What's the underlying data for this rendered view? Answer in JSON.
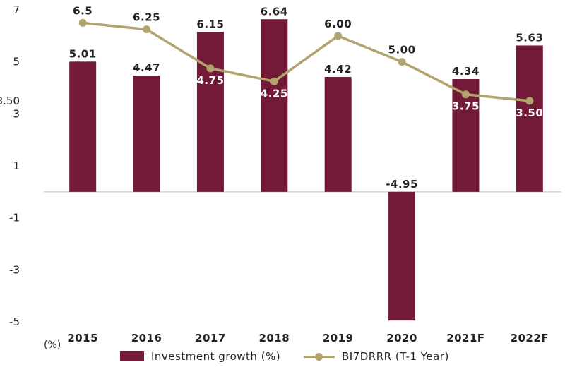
{
  "chart_data": {
    "type": "bar",
    "categories": [
      "2015",
      "2016",
      "2017",
      "2018",
      "2019",
      "2020",
      "2021F",
      "2022F"
    ],
    "yticks": [
      "7",
      "5",
      "3.50",
      "3",
      "1",
      "-1",
      "-3",
      "-5"
    ],
    "ylim": [
      -5,
      7
    ],
    "unit_label": "(%)",
    "series": [
      {
        "name": "Investment growth (%)",
        "kind": "bar",
        "color": "#731a38",
        "values": [
          5.01,
          4.47,
          6.15,
          6.64,
          4.42,
          -4.95,
          4.34,
          5.63
        ],
        "labels": [
          "5.01",
          "4.47",
          "6.15",
          "6.64",
          "4.42",
          "-4.95",
          "4.34",
          "5.63"
        ]
      },
      {
        "name": "BI7DRRR (T-1 Year)",
        "kind": "line",
        "color": "#b2a46e",
        "values": [
          6.5,
          6.25,
          4.75,
          4.25,
          6.0,
          5.0,
          3.75,
          3.5
        ],
        "labels": [
          "6.5",
          "6.25",
          "4.75",
          "4.25",
          "6.00",
          "5.00",
          "3.75",
          "3.50"
        ]
      }
    ],
    "grid": false,
    "legend_position": "bottom"
  }
}
